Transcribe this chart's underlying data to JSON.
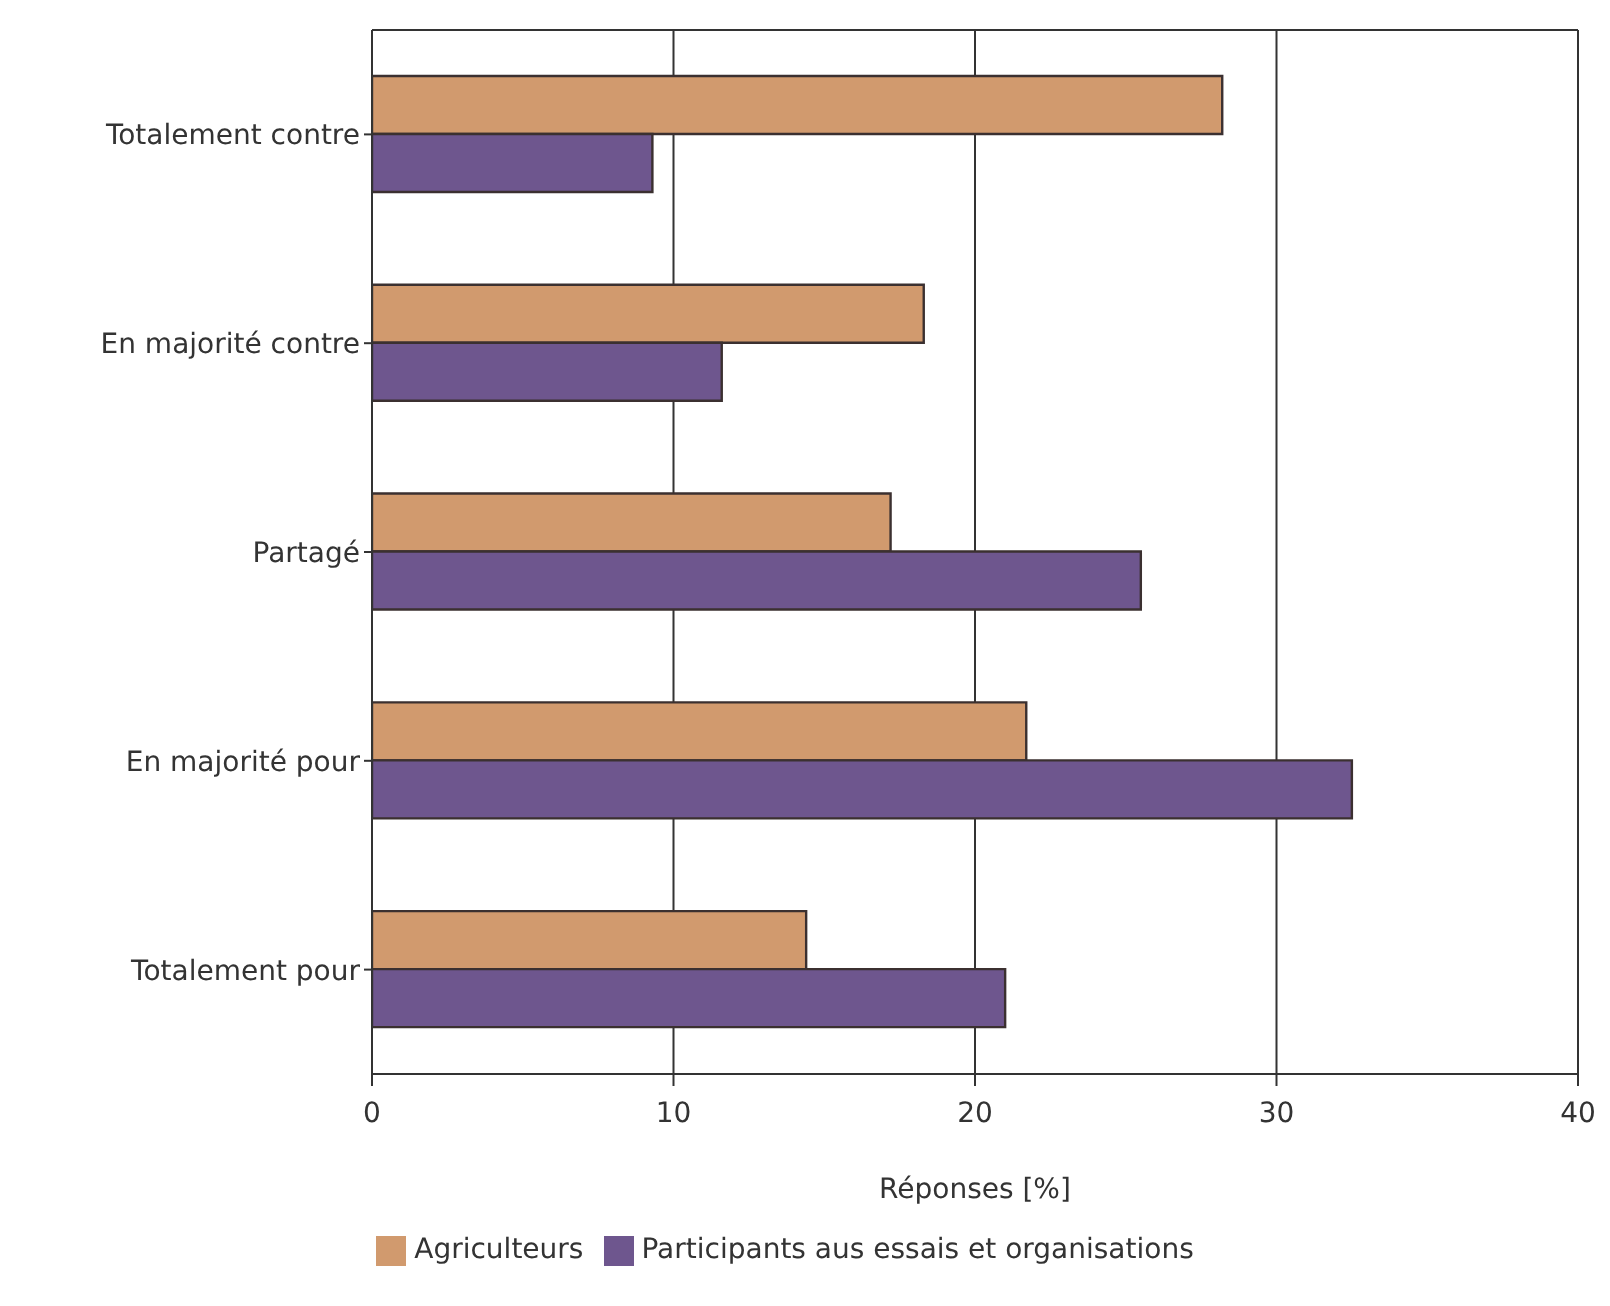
{
  "chart_data": {
    "type": "bar",
    "orientation": "horizontal",
    "xlabel": "Réponses [%]",
    "categories": [
      "Totalement contre",
      "En majorité contre",
      "Partagé",
      "En majorité pour",
      "Totalement pour"
    ],
    "series": [
      {
        "name": "Agriculteurs",
        "color": "#d19a6e",
        "values": [
          28.2,
          18.3,
          17.2,
          21.7,
          14.4
        ]
      },
      {
        "name": "Participants aus essais et organisations",
        "color": "#6e568e",
        "values": [
          9.3,
          11.6,
          25.5,
          32.5,
          21.0
        ]
      }
    ],
    "xlim": [
      0,
      40
    ],
    "xticks": [
      0,
      10,
      20,
      30,
      40
    ],
    "grid": "x",
    "legend": "bottom"
  }
}
